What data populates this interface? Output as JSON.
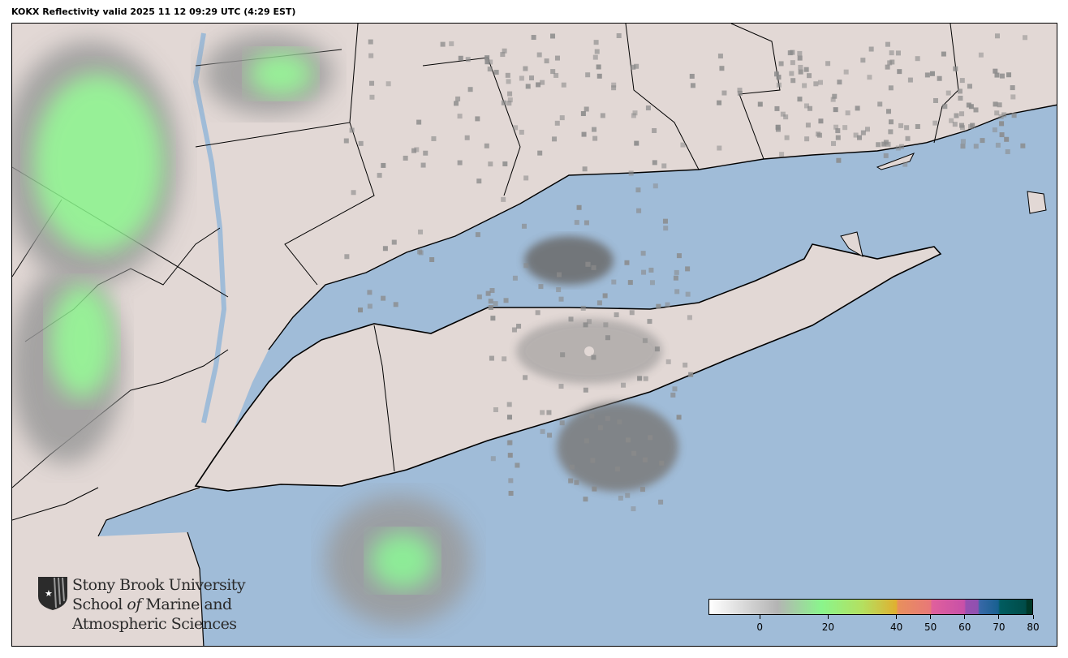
{
  "title": "KOKX Reflectivity valid 2025 11 12 09:29 UTC (4:29 EST)",
  "colors": {
    "water": "#a0bcd8",
    "land": "#e2d8d5",
    "radar_green": "#8af58c",
    "radar_gray": "#8a8a8a"
  },
  "logo": {
    "line1": "Stony Brook University",
    "line2_a": "School ",
    "line2_b": "of",
    "line2_c": " Marine and",
    "line3": "Atmospheric Sciences",
    "icon": "shield-star-icon"
  },
  "colorbar": {
    "vmin": -15,
    "vmax": 80,
    "ticks": [
      "0",
      "20",
      "40",
      "50",
      "60",
      "70",
      "80"
    ],
    "tick_values": [
      0,
      20,
      40,
      50,
      60,
      70,
      80
    ],
    "stops": [
      [
        -15,
        "#ffffff"
      ],
      [
        5,
        "#b4b4b4"
      ],
      [
        18,
        "#8af58c"
      ],
      [
        30,
        "#b4e060"
      ],
      [
        40,
        "#e0b030"
      ],
      [
        40.5,
        "#e8905c"
      ],
      [
        50,
        "#e87878"
      ],
      [
        50.5,
        "#e0609c"
      ],
      [
        60,
        "#c850a8"
      ],
      [
        60.5,
        "#9850b0"
      ],
      [
        64,
        "#9050b0"
      ],
      [
        64.5,
        "#3868a8"
      ],
      [
        70,
        "#186090"
      ],
      [
        70.5,
        "#005c60"
      ],
      [
        78,
        "#004c48"
      ],
      [
        78.5,
        "#003828"
      ],
      [
        80,
        "#003828"
      ]
    ]
  }
}
